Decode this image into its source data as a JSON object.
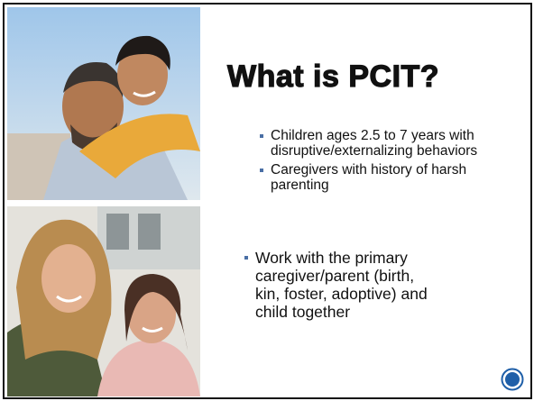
{
  "slide": {
    "title": "What is PCIT?",
    "sub_bullets": [
      "Children ages 2.5 to 7 years with disruptive/externalizing behaviors",
      "Caregivers with history of harsh parenting"
    ],
    "bullets": [
      "Work with the primary caregiver/parent (birth, kin, foster, adoptive) and child together"
    ]
  }
}
